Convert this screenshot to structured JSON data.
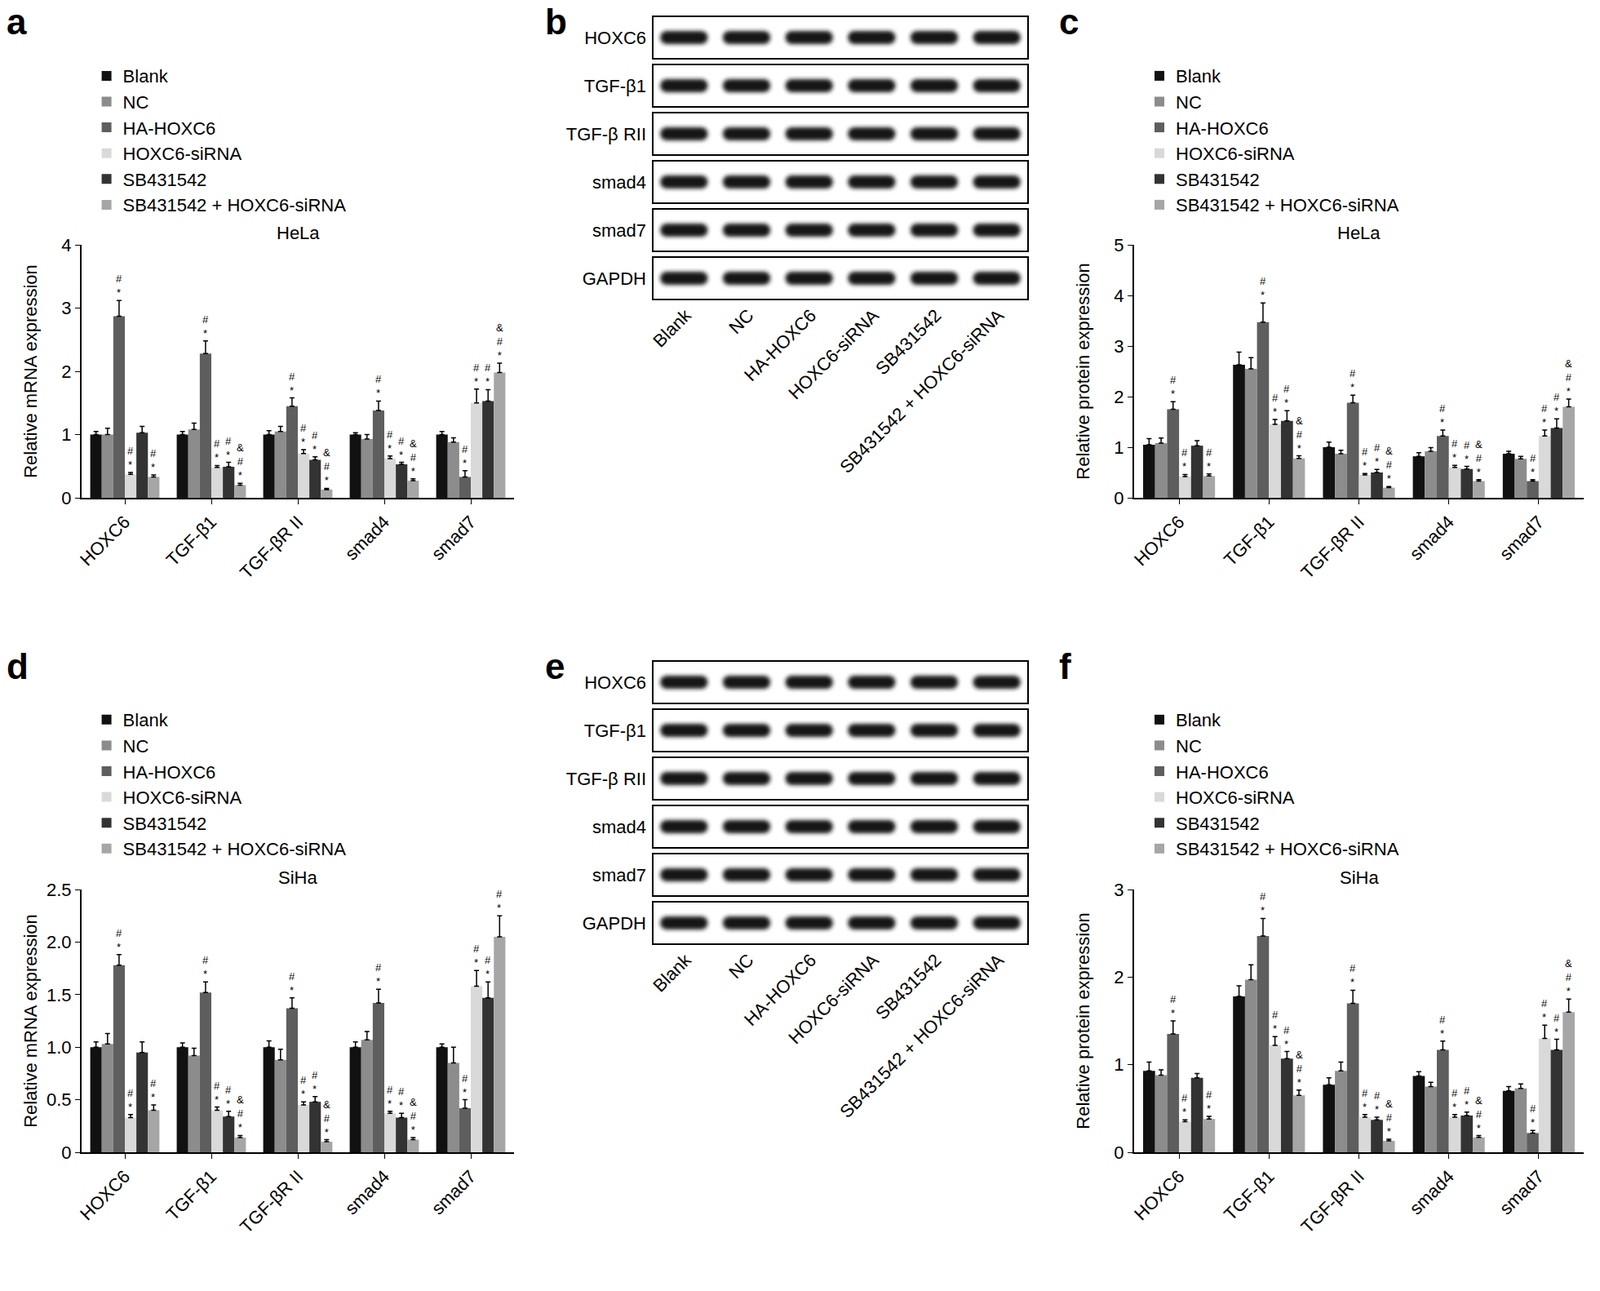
{
  "chart_data": [
    {
      "panel": "a",
      "type": "bar",
      "title": "HeLa",
      "y_label": "Relative mRNA expression",
      "categories": [
        "HOXC6",
        "TGF-β1",
        "TGF-βR II",
        "smad4",
        "smad7"
      ],
      "ylim": [
        0,
        4
      ],
      "yticks": [
        0,
        1,
        2,
        3,
        4
      ],
      "series": [
        {
          "name": "Blank",
          "color": "#111111",
          "values": [
            1,
            1,
            1,
            1,
            1
          ],
          "errors": [
            0.05,
            0.05,
            0.06,
            0.03,
            0.05
          ],
          "marks": [
            [],
            [],
            [],
            [],
            []
          ]
        },
        {
          "name": "NC",
          "color": "#8c8c8c",
          "values": [
            1.0,
            1.08,
            1.05,
            0.93,
            0.88
          ],
          "errors": [
            0.1,
            0.1,
            0.08,
            0.07,
            0.07
          ],
          "marks": [
            [],
            [],
            [],
            [],
            []
          ]
        },
        {
          "name": "HA-HOXC6",
          "color": "#5e5e5e",
          "values": [
            2.87,
            2.28,
            1.45,
            1.38,
            0.33
          ],
          "errors": [
            0.25,
            0.2,
            0.13,
            0.15,
            0.1
          ],
          "marks": [
            [
              "#",
              "*"
            ],
            [
              "#",
              "*"
            ],
            [
              "#",
              "*"
            ],
            [
              "#",
              "*"
            ],
            [
              "#",
              "*"
            ]
          ]
        },
        {
          "name": "HOXC6-siRNA",
          "color": "#d9d9d9",
          "values": [
            0.37,
            0.48,
            0.7,
            0.62,
            1.5
          ],
          "errors": [
            0.03,
            0.03,
            0.06,
            0.04,
            0.22
          ],
          "marks": [
            [
              "#",
              "*"
            ],
            [
              "#",
              "*"
            ],
            [
              "#",
              "*"
            ],
            [
              "#",
              "*"
            ],
            [
              "#",
              "*"
            ]
          ]
        },
        {
          "name": "SB431542",
          "color": "#333333",
          "values": [
            1.03,
            0.49,
            0.6,
            0.53,
            1.53
          ],
          "errors": [
            0.1,
            0.07,
            0.05,
            0.03,
            0.18
          ],
          "marks": [
            [],
            [
              "#",
              "*"
            ],
            [
              "#",
              "*"
            ],
            [
              "#",
              "*"
            ],
            [
              "#",
              "*"
            ]
          ]
        },
        {
          "name": "SB431542 + HOXC6-siRNA",
          "color": "#a6a6a6",
          "values": [
            0.33,
            0.2,
            0.13,
            0.27,
            1.98
          ],
          "errors": [
            0.03,
            0.03,
            0.02,
            0.03,
            0.15
          ],
          "marks": [
            [
              "#",
              "*"
            ],
            [
              "&",
              "#",
              "*"
            ],
            [
              "&",
              "#",
              "*"
            ],
            [
              "&",
              "#",
              "*"
            ],
            [
              "&",
              "#",
              "*"
            ]
          ]
        }
      ]
    },
    {
      "panel": "c",
      "type": "bar",
      "title": "HeLa",
      "y_label": "Relative protein expression",
      "categories": [
        "HOXC6",
        "TGF-β1",
        "TGF-βR II",
        "smad4",
        "smad7"
      ],
      "ylim": [
        0,
        5
      ],
      "yticks": [
        0,
        1,
        2,
        3,
        4,
        5
      ],
      "series": [
        {
          "name": "Blank",
          "color": "#111111",
          "values": [
            1.05,
            2.63,
            1.0,
            0.82,
            0.87
          ],
          "errors": [
            0.12,
            0.25,
            0.1,
            0.07,
            0.05
          ],
          "marks": [
            [],
            [],
            [],
            [],
            []
          ]
        },
        {
          "name": "NC",
          "color": "#8c8c8c",
          "values": [
            1.08,
            2.55,
            0.87,
            0.92,
            0.77
          ],
          "errors": [
            0.1,
            0.22,
            0.07,
            0.07,
            0.05
          ],
          "marks": [
            [],
            [],
            [],
            [],
            []
          ]
        },
        {
          "name": "HA-HOXC6",
          "color": "#5e5e5e",
          "values": [
            1.75,
            3.47,
            1.88,
            1.22,
            0.33
          ],
          "errors": [
            0.15,
            0.38,
            0.15,
            0.12,
            0.03
          ],
          "marks": [
            [
              "#",
              "*"
            ],
            [
              "#",
              "*"
            ],
            [
              "#",
              "*"
            ],
            [
              "#",
              "*"
            ],
            [
              "#",
              "*"
            ]
          ]
        },
        {
          "name": "HOXC6-siRNA",
          "color": "#d9d9d9",
          "values": [
            0.42,
            1.45,
            0.45,
            0.6,
            1.22
          ],
          "errors": [
            0.04,
            0.1,
            0.03,
            0.04,
            0.12
          ],
          "marks": [
            [
              "#",
              "*"
            ],
            [
              "#",
              "*"
            ],
            [
              "#",
              "*"
            ],
            [
              "#",
              "*"
            ],
            [
              "#",
              "*"
            ]
          ]
        },
        {
          "name": "SB431542",
          "color": "#333333",
          "values": [
            1.03,
            1.52,
            0.5,
            0.57,
            1.38
          ],
          "errors": [
            0.1,
            0.2,
            0.06,
            0.05,
            0.18
          ],
          "marks": [
            [],
            [
              "#",
              "*"
            ],
            [
              "#",
              "*"
            ],
            [
              "#",
              "*"
            ],
            [
              "#",
              "*"
            ]
          ]
        },
        {
          "name": "SB431542 + HOXC6-siRNA",
          "color": "#a6a6a6",
          "values": [
            0.43,
            0.78,
            0.2,
            0.33,
            1.8
          ],
          "errors": [
            0.04,
            0.05,
            0.02,
            0.03,
            0.15
          ],
          "marks": [
            [
              "#",
              "*"
            ],
            [
              "&",
              "#",
              "*"
            ],
            [
              "&",
              "#",
              "*"
            ],
            [
              "&",
              "#",
              "*"
            ],
            [
              "&",
              "#",
              "*"
            ]
          ]
        }
      ]
    },
    {
      "panel": "d",
      "type": "bar",
      "title": "SiHa",
      "y_label": "Relative mRNA expression",
      "categories": [
        "HOXC6",
        "TGF-β1",
        "TGF-βR II",
        "smad4",
        "smad7"
      ],
      "ylim": [
        0,
        2.5
      ],
      "yticks": [
        0,
        0.5,
        {
          "value": 1,
          "label": "1.0"
        },
        1.5,
        {
          "value": 2,
          "label": "2.0"
        },
        2.5
      ],
      "series": [
        {
          "name": "Blank",
          "color": "#111111",
          "values": [
            1,
            1,
            1,
            1,
            1
          ],
          "errors": [
            0.05,
            0.04,
            0.06,
            0.05,
            0.03
          ],
          "marks": [
            [],
            [],
            [],
            [],
            []
          ]
        },
        {
          "name": "NC",
          "color": "#8c8c8c",
          "values": [
            1.03,
            0.92,
            0.88,
            1.07,
            0.85
          ],
          "errors": [
            0.1,
            0.07,
            0.1,
            0.08,
            0.15
          ],
          "marks": [
            [],
            [],
            [],
            [],
            []
          ]
        },
        {
          "name": "HA-HOXC6",
          "color": "#5e5e5e",
          "values": [
            1.78,
            1.52,
            1.37,
            1.42,
            0.42
          ],
          "errors": [
            0.1,
            0.1,
            0.1,
            0.13,
            0.08
          ],
          "marks": [
            [
              "#",
              "*"
            ],
            [
              "#",
              "*"
            ],
            [
              "#",
              "*"
            ],
            [
              "#",
              "*"
            ],
            [
              "#",
              "*"
            ]
          ]
        },
        {
          "name": "HOXC6-siRNA",
          "color": "#d9d9d9",
          "values": [
            0.33,
            0.4,
            0.45,
            0.37,
            1.58
          ],
          "errors": [
            0.03,
            0.03,
            0.03,
            0.02,
            0.15
          ],
          "marks": [
            [
              "#",
              "*"
            ],
            [
              "#",
              "*"
            ],
            [
              "#",
              "*"
            ],
            [
              "#",
              "*"
            ],
            [
              "#",
              "*"
            ]
          ]
        },
        {
          "name": "SB431542",
          "color": "#333333",
          "values": [
            0.95,
            0.34,
            0.48,
            0.33,
            1.47
          ],
          "errors": [
            0.1,
            0.05,
            0.05,
            0.04,
            0.15
          ],
          "marks": [
            [],
            [
              "#",
              "*"
            ],
            [
              "#",
              "*"
            ],
            [
              "#",
              "*"
            ],
            [
              "#",
              "*"
            ]
          ]
        },
        {
          "name": "SB431542 + HOXC6-siRNA",
          "color": "#a6a6a6",
          "values": [
            0.4,
            0.14,
            0.1,
            0.12,
            2.05
          ],
          "errors": [
            0.05,
            0.02,
            0.02,
            0.02,
            0.2
          ],
          "marks": [
            [
              "#",
              "*"
            ],
            [
              "&",
              "#",
              "*"
            ],
            [
              "&",
              "#",
              "*"
            ],
            [
              "&",
              "#",
              "*"
            ],
            [
              "#",
              "*"
            ]
          ]
        }
      ]
    },
    {
      "panel": "f",
      "type": "bar",
      "title": "SiHa",
      "y_label": "Relative protein expression",
      "categories": [
        "HOXC6",
        "TGF-β1",
        "TGF-βR II",
        "smad4",
        "smad7"
      ],
      "ylim": [
        0,
        3
      ],
      "yticks": [
        0,
        1,
        2,
        3
      ],
      "series": [
        {
          "name": "Blank",
          "color": "#111111",
          "values": [
            0.93,
            1.78,
            0.77,
            0.87,
            0.7
          ],
          "errors": [
            0.1,
            0.12,
            0.08,
            0.05,
            0.05
          ],
          "marks": [
            [],
            [],
            [],
            [],
            []
          ]
        },
        {
          "name": "NC",
          "color": "#8c8c8c",
          "values": [
            0.88,
            1.97,
            0.93,
            0.75,
            0.73
          ],
          "errors": [
            0.06,
            0.17,
            0.1,
            0.05,
            0.05
          ],
          "marks": [
            [],
            [],
            [],
            [],
            []
          ]
        },
        {
          "name": "HA-HOXC6",
          "color": "#5e5e5e",
          "values": [
            1.35,
            2.47,
            1.7,
            1.17,
            0.22
          ],
          "errors": [
            0.15,
            0.2,
            0.15,
            0.1,
            0.03
          ],
          "marks": [
            [
              "#",
              "*"
            ],
            [
              "#",
              "*"
            ],
            [
              "#",
              "*"
            ],
            [
              "#",
              "*"
            ],
            [
              "#",
              "*"
            ]
          ]
        },
        {
          "name": "HOXC6-siRNA",
          "color": "#d9d9d9",
          "values": [
            0.35,
            1.22,
            0.4,
            0.4,
            1.3
          ],
          "errors": [
            0.02,
            0.1,
            0.03,
            0.03,
            0.15
          ],
          "marks": [
            [
              "#",
              "*"
            ],
            [
              "#",
              "*"
            ],
            [
              "#",
              "*"
            ],
            [
              "#",
              "*"
            ],
            [
              "#",
              "*"
            ]
          ]
        },
        {
          "name": "SB431542",
          "color": "#333333",
          "values": [
            0.85,
            1.07,
            0.37,
            0.42,
            1.17
          ],
          "errors": [
            0.05,
            0.08,
            0.03,
            0.04,
            0.12
          ],
          "marks": [
            [],
            [
              "#",
              "*"
            ],
            [
              "#",
              "*"
            ],
            [
              "#",
              "*"
            ],
            [
              "#",
              "*"
            ]
          ]
        },
        {
          "name": "SB431542 + HOXC6-siRNA",
          "color": "#a6a6a6",
          "values": [
            0.38,
            0.65,
            0.13,
            0.17,
            1.6
          ],
          "errors": [
            0.03,
            0.06,
            0.02,
            0.02,
            0.15
          ],
          "marks": [
            [
              "#",
              "*"
            ],
            [
              "&",
              "#",
              "*"
            ],
            [
              "&",
              "#",
              "*"
            ],
            [
              "&",
              "#",
              "*"
            ],
            [
              "&",
              "#",
              "*"
            ]
          ]
        }
      ]
    }
  ],
  "blots": [
    {
      "panel": "b",
      "rows": [
        "HOXC6",
        "TGF-β1",
        "TGF-β RII",
        "smad4",
        "smad7",
        "GAPDH"
      ],
      "lanes": [
        "Blank",
        "NC",
        "HA-HOXC6",
        "HOXC6-siRNA",
        "SB431542",
        "SB431542 + HOXC6-siRNA"
      ]
    },
    {
      "panel": "e",
      "rows": [
        "HOXC6",
        "TGF-β1",
        "TGF-β RII",
        "smad4",
        "smad7",
        "GAPDH"
      ],
      "lanes": [
        "Blank",
        "NC",
        "HA-HOXC6",
        "HOXC6-siRNA",
        "SB431542",
        "SB431542 + HOXC6-siRNA"
      ]
    }
  ]
}
